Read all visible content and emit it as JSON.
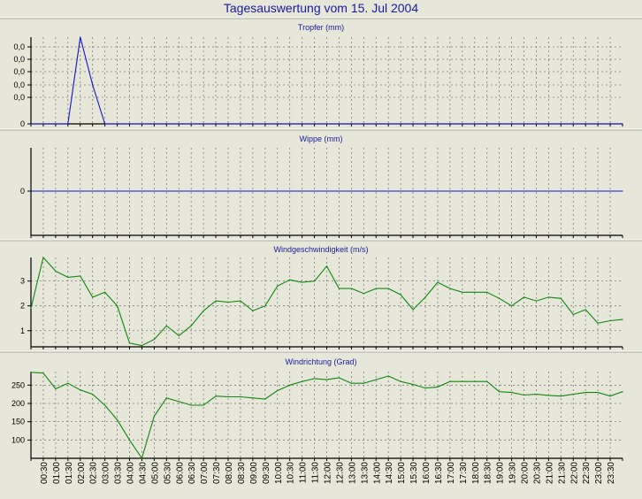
{
  "page_title": "Tagesauswertung vom 15. Jul 2004",
  "time_labels": [
    "00:30",
    "01:00",
    "01:30",
    "02:00",
    "02:30",
    "03:00",
    "03:30",
    "04:00",
    "04:30",
    "05:00",
    "05:30",
    "06:00",
    "06:30",
    "07:00",
    "07:30",
    "08:00",
    "08:30",
    "09:00",
    "09:30",
    "10:00",
    "10:30",
    "11:00",
    "11:30",
    "12:00",
    "12:30",
    "13:00",
    "13:30",
    "14:00",
    "14:30",
    "15:00",
    "15:30",
    "16:00",
    "16:30",
    "17:00",
    "17:30",
    "18:00",
    "18:30",
    "19:00",
    "19:30",
    "20:00",
    "20:30",
    "21:00",
    "21:30",
    "22:00",
    "22:30",
    "23:00",
    "23:30"
  ],
  "colors": {
    "background": "#e6e7d8",
    "title": "#1a1a9e",
    "blue_line": "#1515cc",
    "green_line": "#118811",
    "grid": "#7a7a7a"
  },
  "chart_data": [
    {
      "type": "line",
      "title": "Tropfer (mm)",
      "x": [
        "00:00",
        "00:30",
        "01:00",
        "01:30",
        "02:00",
        "02:30",
        "03:00",
        "03:30",
        "04:00",
        "04:30",
        "05:00",
        "05:30",
        "06:00",
        "06:30",
        "07:00",
        "07:30",
        "08:00",
        "08:30",
        "09:00",
        "09:30",
        "10:00",
        "10:30",
        "11:00",
        "11:30",
        "12:00",
        "12:30",
        "13:00",
        "13:30",
        "14:00",
        "14:30",
        "15:00",
        "15:30",
        "16:00",
        "16:30",
        "17:00",
        "17:30",
        "18:00",
        "18:30",
        "19:00",
        "19:30",
        "20:00",
        "20:30",
        "21:00",
        "21:30",
        "22:00",
        "22:30",
        "23:00",
        "23:30",
        "24:00"
      ],
      "values": [
        0,
        0,
        0,
        0,
        0.06,
        0.027,
        0,
        0,
        0,
        0,
        0,
        0,
        0,
        0,
        0,
        0,
        0,
        0,
        0,
        0,
        0,
        0,
        0,
        0,
        0,
        0,
        0,
        0,
        0,
        0,
        0,
        0,
        0,
        0,
        0,
        0,
        0,
        0,
        0,
        0,
        0,
        0,
        0,
        0,
        0,
        0,
        0,
        0,
        0
      ],
      "yticks": [
        "0,0",
        "0,0",
        "0,0",
        "0,0",
        "0,0",
        "0"
      ],
      "ylim": [
        0,
        0.06
      ],
      "color": "#1515cc"
    },
    {
      "type": "line",
      "title": "Wippe (mm)",
      "x": [
        "00:00",
        "24:00"
      ],
      "values": [
        0,
        0
      ],
      "yticks": [
        "0"
      ],
      "ylim": [
        -1,
        1
      ],
      "color": "#1515cc"
    },
    {
      "type": "line",
      "title": "Windgeschwindigkeit (m/s)",
      "x": [
        "00:00",
        "00:30",
        "01:00",
        "01:30",
        "02:00",
        "02:30",
        "03:00",
        "03:30",
        "04:00",
        "04:30",
        "05:00",
        "05:30",
        "06:00",
        "06:30",
        "07:00",
        "07:30",
        "08:00",
        "08:30",
        "09:00",
        "09:30",
        "10:00",
        "10:30",
        "11:00",
        "11:30",
        "12:00",
        "12:30",
        "13:00",
        "13:30",
        "14:00",
        "14:30",
        "15:00",
        "15:30",
        "16:00",
        "16:30",
        "17:00",
        "17:30",
        "18:00",
        "18:30",
        "19:00",
        "19:30",
        "20:00",
        "20:30",
        "21:00",
        "21:30",
        "22:00",
        "22:30",
        "23:00",
        "23:30",
        "24:00"
      ],
      "values": [
        1.9,
        3.95,
        3.4,
        3.15,
        3.2,
        2.35,
        2.55,
        2.0,
        0.5,
        0.4,
        0.65,
        1.2,
        0.8,
        1.2,
        1.8,
        2.2,
        2.15,
        2.2,
        1.8,
        2.0,
        2.8,
        3.05,
        2.95,
        3.0,
        3.6,
        2.7,
        2.7,
        2.5,
        2.7,
        2.7,
        2.45,
        1.85,
        2.35,
        2.95,
        2.7,
        2.55,
        2.55,
        2.55,
        2.3,
        2.0,
        2.35,
        2.2,
        2.35,
        2.3,
        1.65,
        1.85,
        1.3,
        1.4,
        1.45
      ],
      "yticks": [
        "3",
        "2",
        "1"
      ],
      "ytick_values": [
        3,
        2,
        1
      ],
      "ylim": [
        0.35,
        3.95
      ],
      "color": "#118811"
    },
    {
      "type": "line",
      "title": "Windrichtung (Grad)",
      "x": [
        "00:00",
        "00:30",
        "01:00",
        "01:30",
        "02:00",
        "02:30",
        "03:00",
        "03:30",
        "04:00",
        "04:30",
        "05:00",
        "05:30",
        "06:00",
        "06:30",
        "07:00",
        "07:30",
        "08:00",
        "08:30",
        "09:00",
        "09:30",
        "10:00",
        "10:30",
        "11:00",
        "11:30",
        "12:00",
        "12:30",
        "13:00",
        "13:30",
        "14:00",
        "14:30",
        "15:00",
        "15:30",
        "16:00",
        "16:30",
        "17:00",
        "17:30",
        "18:00",
        "18:30",
        "19:00",
        "19:30",
        "20:00",
        "20:30",
        "21:00",
        "21:30",
        "22:00",
        "22:30",
        "23:00",
        "23:30",
        "24:00"
      ],
      "values": [
        285,
        283,
        240,
        255,
        237,
        225,
        195,
        155,
        100,
        50,
        165,
        215,
        205,
        195,
        195,
        220,
        218,
        218,
        215,
        212,
        235,
        250,
        260,
        268,
        265,
        270,
        255,
        255,
        265,
        275,
        260,
        252,
        242,
        245,
        260,
        260,
        260,
        260,
        232,
        230,
        223,
        225,
        222,
        220,
        225,
        230,
        230,
        220,
        232
      ],
      "yticks": [
        "250",
        "200",
        "150",
        "100"
      ],
      "ytick_values": [
        250,
        200,
        150,
        100
      ],
      "ylim": [
        50,
        287
      ],
      "color": "#118811"
    }
  ]
}
